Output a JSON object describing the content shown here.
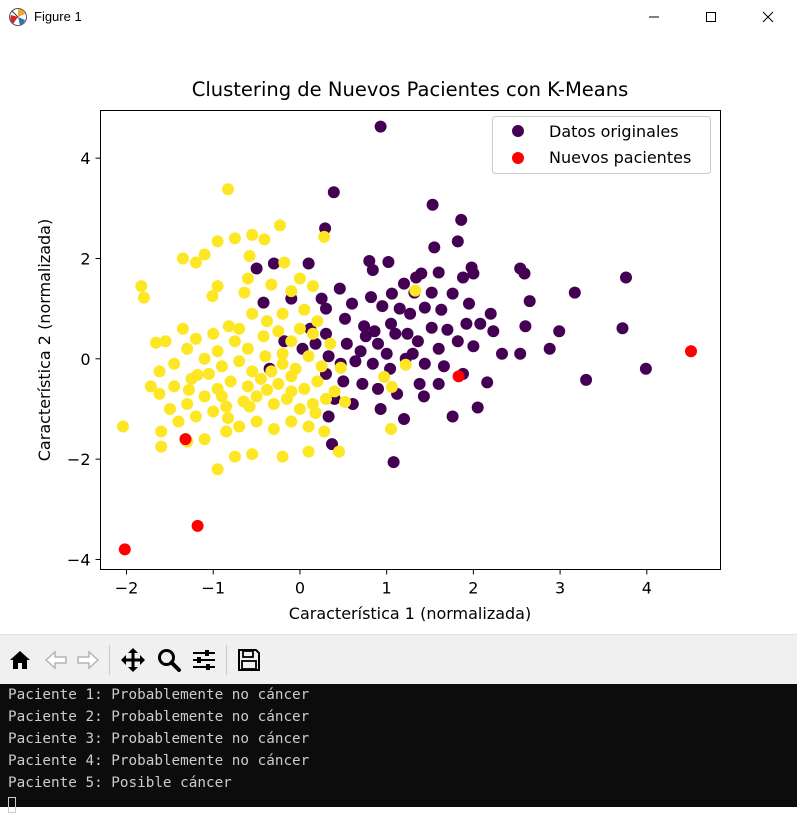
{
  "window": {
    "title": "Figure 1",
    "app_icon": "matplotlib-figure-icon",
    "controls": [
      "minimize-icon",
      "maximize-icon",
      "close-icon"
    ]
  },
  "chart_data": {
    "type": "scatter",
    "title": "Clustering de Nuevos Pacientes con K-Means",
    "xlabel": "Característica 1 (normalizada)",
    "ylabel": "Característica 2 (normalizada)",
    "xlim": [
      -2.3,
      4.85
    ],
    "ylim": [
      -4.2,
      4.95
    ],
    "xticks": [
      -2,
      -1,
      0,
      1,
      2,
      3,
      4
    ],
    "yticks": [
      -4,
      -2,
      0,
      2,
      4
    ],
    "xtick_labels": [
      "−2",
      "−1",
      "0",
      "1",
      "2",
      "3",
      "4"
    ],
    "ytick_labels": [
      "−4",
      "−2",
      "0",
      "2",
      "4"
    ],
    "grid": false,
    "legend": {
      "position": "top-right",
      "entries": [
        "Datos originales",
        "Nuevos pacientes"
      ]
    },
    "series": [
      {
        "name": "Datos originales",
        "cluster": "0",
        "color": "#440154",
        "points": [
          [
            0.93,
            4.63
          ],
          [
            0.39,
            3.32
          ],
          [
            1.53,
            3.07
          ],
          [
            1.86,
            2.77
          ],
          [
            0.29,
            2.6
          ],
          [
            1.55,
            2.22
          ],
          [
            1.82,
            2.34
          ],
          [
            1.98,
            1.82
          ],
          [
            2.54,
            1.8
          ],
          [
            2.59,
            1.7
          ],
          [
            3.76,
            1.62
          ],
          [
            0.8,
            1.95
          ],
          [
            1.02,
            1.93
          ],
          [
            0.84,
            1.77
          ],
          [
            1.4,
            1.7
          ],
          [
            1.34,
            1.62
          ],
          [
            1.6,
            1.72
          ],
          [
            1.88,
            1.62
          ],
          [
            2.0,
            1.7
          ],
          [
            -0.5,
            1.8
          ],
          [
            -0.3,
            1.9
          ],
          [
            0.1,
            1.9
          ],
          [
            1.2,
            1.5
          ],
          [
            1.06,
            1.3
          ],
          [
            1.32,
            1.32
          ],
          [
            1.52,
            1.32
          ],
          [
            1.76,
            1.3
          ],
          [
            1.95,
            1.1
          ],
          [
            2.2,
            0.9
          ],
          [
            2.65,
            1.15
          ],
          [
            3.17,
            1.32
          ],
          [
            0.46,
            1.4
          ],
          [
            0.6,
            1.1
          ],
          [
            0.82,
            1.23
          ],
          [
            0.95,
            1.05
          ],
          [
            1.15,
            1.0
          ],
          [
            1.27,
            0.9
          ],
          [
            1.44,
            1.02
          ],
          [
            1.63,
            0.98
          ],
          [
            0.3,
            1.0
          ],
          [
            0.52,
            0.8
          ],
          [
            0.74,
            0.65
          ],
          [
            0.86,
            0.55
          ],
          [
            1.05,
            0.7
          ],
          [
            1.24,
            0.5
          ],
          [
            1.52,
            0.62
          ],
          [
            1.7,
            0.58
          ],
          [
            1.92,
            0.7
          ],
          [
            2.08,
            0.7
          ],
          [
            2.23,
            0.55
          ],
          [
            2.6,
            0.65
          ],
          [
            2.99,
            0.55
          ],
          [
            3.72,
            0.61
          ],
          [
            0.3,
            0.5
          ],
          [
            0.54,
            0.3
          ],
          [
            0.7,
            0.15
          ],
          [
            0.9,
            0.3
          ],
          [
            1.1,
            0.5
          ],
          [
            1.36,
            0.35
          ],
          [
            1.6,
            0.2
          ],
          [
            1.82,
            0.35
          ],
          [
            2.0,
            0.25
          ],
          [
            2.33,
            0.1
          ],
          [
            2.54,
            0.1
          ],
          [
            2.88,
            0.2
          ],
          [
            0.18,
            0.3
          ],
          [
            0.33,
            0.05
          ],
          [
            0.47,
            -0.1
          ],
          [
            0.64,
            -0.05
          ],
          [
            0.84,
            -0.1
          ],
          [
            1.0,
            0.1
          ],
          [
            1.22,
            0.0
          ],
          [
            1.44,
            -0.1
          ],
          [
            1.66,
            -0.15
          ],
          [
            1.88,
            -0.3
          ],
          [
            3.99,
            -0.2
          ],
          [
            0.3,
            -0.3
          ],
          [
            0.5,
            -0.45
          ],
          [
            0.72,
            -0.5
          ],
          [
            0.9,
            -0.6
          ],
          [
            1.12,
            -0.7
          ],
          [
            1.38,
            -0.5
          ],
          [
            1.6,
            -0.5
          ],
          [
            2.16,
            -0.47
          ],
          [
            3.3,
            -0.42
          ],
          [
            0.4,
            -0.8
          ],
          [
            0.61,
            -0.9
          ],
          [
            0.93,
            -1.0
          ],
          [
            1.43,
            -0.75
          ],
          [
            2.05,
            -0.97
          ],
          [
            1.76,
            -1.15
          ],
          [
            0.33,
            -1.15
          ],
          [
            0.37,
            -1.7
          ],
          [
            1.08,
            -2.06
          ],
          [
            1.2,
            -1.2
          ],
          [
            -0.35,
            -0.2
          ],
          [
            -0.18,
            0.35
          ],
          [
            0.03,
            0.2
          ],
          [
            0.12,
            0.6
          ],
          [
            -0.1,
            1.2
          ],
          [
            0.25,
            1.2
          ],
          [
            1.04,
            -0.2
          ],
          [
            0.76,
            0.45
          ],
          [
            -0.42,
            1.12
          ],
          [
            1.3,
            0.1
          ]
        ]
      },
      {
        "name": "Datos originales",
        "cluster": "1",
        "color": "#fde725",
        "points": [
          [
            -0.83,
            3.38
          ],
          [
            -1.83,
            1.45
          ],
          [
            -1.8,
            1.22
          ],
          [
            -0.55,
            2.47
          ],
          [
            -0.41,
            2.38
          ],
          [
            -0.23,
            2.66
          ],
          [
            -0.75,
            2.4
          ],
          [
            -0.95,
            2.34
          ],
          [
            -1.1,
            2.08
          ],
          [
            -1.35,
            2.0
          ],
          [
            -1.2,
            1.92
          ],
          [
            -0.58,
            2.05
          ],
          [
            -0.18,
            1.92
          ],
          [
            0.28,
            2.43
          ],
          [
            0.0,
            1.6
          ],
          [
            0.15,
            1.45
          ],
          [
            -0.6,
            1.6
          ],
          [
            -0.95,
            1.45
          ],
          [
            -1.01,
            1.25
          ],
          [
            -0.64,
            1.32
          ],
          [
            -0.33,
            1.48
          ],
          [
            -0.1,
            1.35
          ],
          [
            -1.66,
            0.32
          ],
          [
            -1.35,
            0.6
          ],
          [
            -1.55,
            0.35
          ],
          [
            -1.2,
            0.4
          ],
          [
            -1.0,
            0.5
          ],
          [
            -0.82,
            0.65
          ],
          [
            -0.55,
            0.9
          ],
          [
            -0.38,
            0.75
          ],
          [
            -0.2,
            0.9
          ],
          [
            0.05,
            0.98
          ],
          [
            0.2,
            0.75
          ],
          [
            -1.62,
            -0.25
          ],
          [
            -1.45,
            -0.1
          ],
          [
            -1.3,
            0.2
          ],
          [
            -1.1,
            0.0
          ],
          [
            -0.95,
            0.15
          ],
          [
            -0.75,
            0.35
          ],
          [
            -0.6,
            0.2
          ],
          [
            -0.42,
            0.45
          ],
          [
            -0.25,
            0.55
          ],
          [
            -0.1,
            0.35
          ],
          [
            0.0,
            0.6
          ],
          [
            0.15,
            0.5
          ],
          [
            -1.62,
            -0.7
          ],
          [
            -1.45,
            -0.55
          ],
          [
            -1.25,
            -0.4
          ],
          [
            -1.05,
            -0.3
          ],
          [
            -0.9,
            -0.15
          ],
          [
            -0.7,
            -0.05
          ],
          [
            -0.55,
            -0.25
          ],
          [
            -0.4,
            0.05
          ],
          [
            -0.2,
            -0.1
          ],
          [
            -0.05,
            -0.2
          ],
          [
            0.1,
            0.05
          ],
          [
            0.25,
            -0.15
          ],
          [
            -1.5,
            -1.0
          ],
          [
            -1.3,
            -0.9
          ],
          [
            -1.1,
            -0.75
          ],
          [
            -0.95,
            -0.6
          ],
          [
            -0.8,
            -0.45
          ],
          [
            -0.6,
            -0.55
          ],
          [
            -0.45,
            -0.4
          ],
          [
            -0.25,
            -0.5
          ],
          [
            -0.1,
            -0.35
          ],
          [
            0.05,
            -0.6
          ],
          [
            0.2,
            -0.45
          ],
          [
            -1.6,
            -1.45
          ],
          [
            -1.4,
            -1.25
          ],
          [
            -1.2,
            -1.15
          ],
          [
            -1.0,
            -1.05
          ],
          [
            -0.85,
            -0.95
          ],
          [
            -0.65,
            -0.85
          ],
          [
            -0.5,
            -0.75
          ],
          [
            -0.3,
            -0.9
          ],
          [
            -0.15,
            -0.8
          ],
          [
            0.0,
            -1.0
          ],
          [
            0.15,
            -0.9
          ],
          [
            0.3,
            -0.8
          ],
          [
            -1.6,
            -1.75
          ],
          [
            -1.3,
            -1.65
          ],
          [
            -1.1,
            -1.6
          ],
          [
            -0.85,
            -1.45
          ],
          [
            -0.7,
            -1.35
          ],
          [
            -0.5,
            -1.25
          ],
          [
            -0.3,
            -1.4
          ],
          [
            -0.1,
            -1.25
          ],
          [
            0.1,
            -1.35
          ],
          [
            0.28,
            -1.45
          ],
          [
            -2.04,
            -1.35
          ],
          [
            -0.95,
            -2.2
          ],
          [
            -0.75,
            -1.95
          ],
          [
            -0.55,
            -1.9
          ],
          [
            -0.2,
            -1.95
          ],
          [
            0.1,
            -1.85
          ],
          [
            0.45,
            -1.85
          ],
          [
            1.05,
            -1.4
          ],
          [
            0.52,
            -0.86
          ],
          [
            1.06,
            -0.56
          ],
          [
            0.97,
            -0.36
          ],
          [
            1.22,
            -0.12
          ],
          [
            1.33,
            1.36
          ],
          [
            0.47,
            -0.18
          ],
          [
            -0.38,
            -0.62
          ],
          [
            -0.7,
            0.6
          ],
          [
            -0.2,
            0.1
          ],
          [
            -1.72,
            -0.55
          ],
          [
            -0.83,
            -1.18
          ],
          [
            -1.18,
            -0.32
          ],
          [
            0.4,
            -0.65
          ],
          [
            0.35,
            0.3
          ],
          [
            -0.58,
            -0.95
          ],
          [
            -0.33,
            -0.25
          ],
          [
            0.18,
            -1.08
          ],
          [
            -0.9,
            -0.75
          ],
          [
            -1.28,
            -0.62
          ],
          [
            -0.1,
            -0.65
          ]
        ]
      },
      {
        "name": "Nuevos pacientes",
        "color": "#ff0000",
        "points": [
          [
            -2.02,
            -3.8
          ],
          [
            -1.18,
            -3.33
          ],
          [
            -1.32,
            -1.6
          ],
          [
            1.83,
            -0.35
          ],
          [
            4.51,
            0.15
          ]
        ]
      }
    ]
  },
  "toolbar": {
    "tools": [
      "home-icon",
      "back-arrow-icon",
      "forward-arrow-icon",
      "move-icon",
      "zoom-icon",
      "configure-icon",
      "save-icon"
    ]
  },
  "console": {
    "lines": [
      "Paciente 1: Probablemente no cáncer",
      "Paciente 2: Probablemente no cáncer",
      "Paciente 3: Probablemente no cáncer",
      "Paciente 4: Probablemente no cáncer",
      "Paciente 5: Posible cáncer"
    ]
  }
}
